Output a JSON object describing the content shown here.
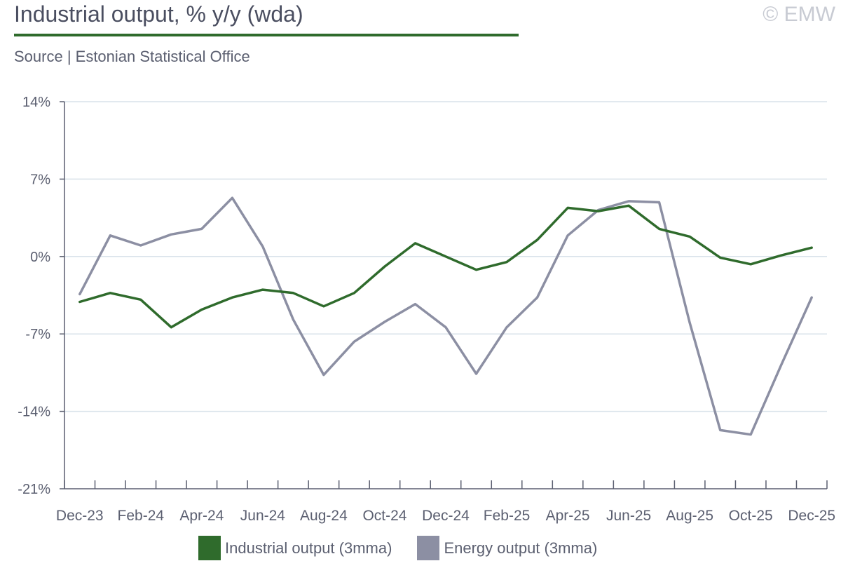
{
  "header": {
    "title": "Industrial output, % y/y (wda)",
    "copyright": "© EMW",
    "source": "Source | Estonian Statistical Office"
  },
  "colors": {
    "industrial": "#2f6b2c",
    "energy": "#8c8fa3",
    "grid": "#d9e2ea",
    "axis": "#5b5f70"
  },
  "chart_data": {
    "type": "line",
    "title": "Industrial output, % y/y (wda)",
    "ylim": [
      -21,
      14
    ],
    "yticks": [
      14,
      7,
      0,
      -7,
      -14,
      -21
    ],
    "ytick_labels": [
      "14%",
      "7%",
      "0%",
      "-7%",
      "-14%",
      "-21%"
    ],
    "x": [
      "Dec-23",
      "Jan-24",
      "Feb-24",
      "Mar-24",
      "Apr-24",
      "May-24",
      "Jun-24",
      "Jul-24",
      "Aug-24",
      "Sep-24",
      "Oct-24",
      "Nov-24",
      "Dec-24",
      "Jan-25",
      "Feb-25",
      "Mar-25",
      "Apr-25",
      "May-25",
      "Jun-25",
      "Jul-25",
      "Aug-25",
      "Sep-25",
      "Oct-25",
      "Nov-25",
      "Dec-25"
    ],
    "xtick_labels": [
      "Dec-23",
      "Feb-24",
      "Apr-24",
      "Jun-24",
      "Aug-24",
      "Oct-24",
      "Dec-24",
      "Feb-25",
      "Apr-25",
      "Jun-25",
      "Aug-25",
      "Oct-25",
      "Dec-25"
    ],
    "grid": true,
    "legend": "bottom",
    "series": [
      {
        "name": "Industrial output (3mma)",
        "values": [
          -4.1,
          -3.3,
          -3.9,
          -6.4,
          -4.8,
          -3.7,
          -3.0,
          -3.3,
          -4.5,
          -3.3,
          -0.9,
          1.2,
          0.0,
          -1.2,
          -0.5,
          1.5,
          4.4,
          4.1,
          4.6,
          2.5,
          1.8,
          -0.1,
          -0.7,
          0.1,
          0.8
        ]
      },
      {
        "name": "Energy output (3mma)",
        "values": [
          -3.4,
          1.9,
          1.0,
          2.0,
          2.5,
          5.3,
          0.9,
          -5.7,
          -10.7,
          -7.7,
          -5.9,
          -4.3,
          -6.4,
          -10.6,
          -6.4,
          -3.7,
          1.9,
          4.2,
          5.0,
          4.9,
          -6.0,
          -15.7,
          -16.1,
          -9.8,
          -3.7
        ]
      }
    ]
  }
}
